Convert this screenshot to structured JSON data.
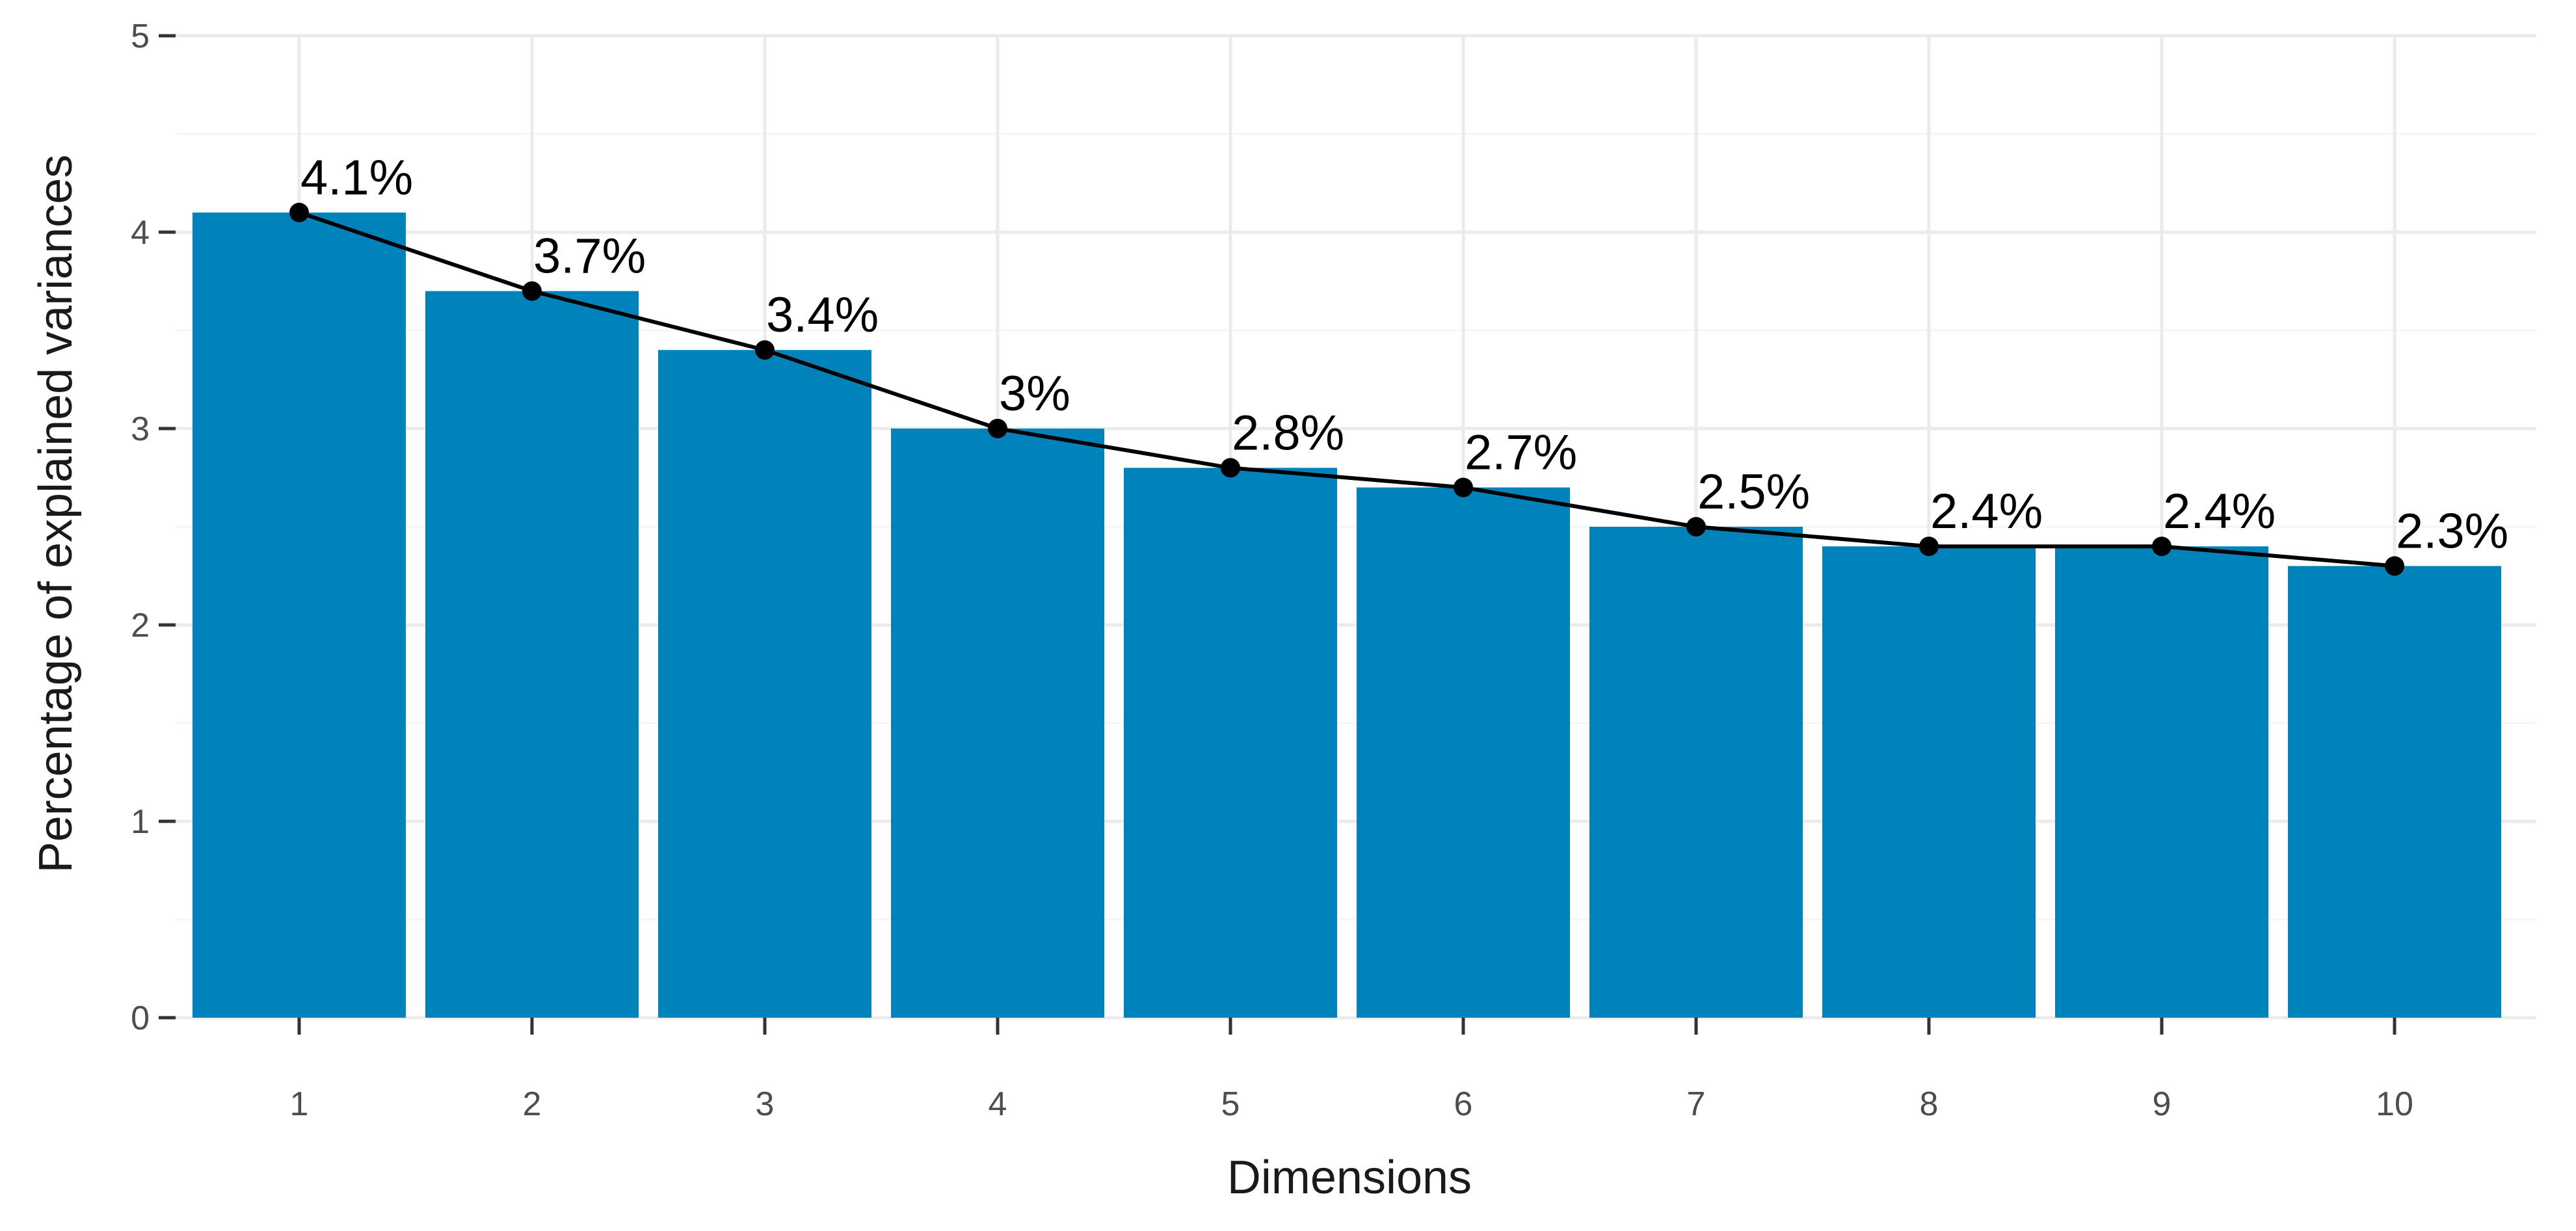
{
  "chart_data": {
    "type": "bar",
    "categories": [
      "1",
      "2",
      "3",
      "4",
      "5",
      "6",
      "7",
      "8",
      "9",
      "10"
    ],
    "values": [
      4.1,
      3.7,
      3.4,
      3.0,
      2.8,
      2.7,
      2.5,
      2.4,
      2.4,
      2.3
    ],
    "data_labels": [
      "4.1%",
      "3.7%",
      "3.4%",
      "3%",
      "2.8%",
      "2.7%",
      "2.5%",
      "2.4%",
      "2.4%",
      "2.3%"
    ],
    "xlabel": "Dimensions",
    "ylabel": "Percentage of explained variances",
    "ylim": [
      0,
      5
    ],
    "yticks": [
      "0",
      "1",
      "2",
      "3",
      "4",
      "5"
    ],
    "grid": true,
    "overlay_line": true,
    "colors": {
      "bar": "#0083BA",
      "line": "#000000",
      "grid_major": "#EBEBEB",
      "grid_minor": "#F5F5F5"
    }
  }
}
